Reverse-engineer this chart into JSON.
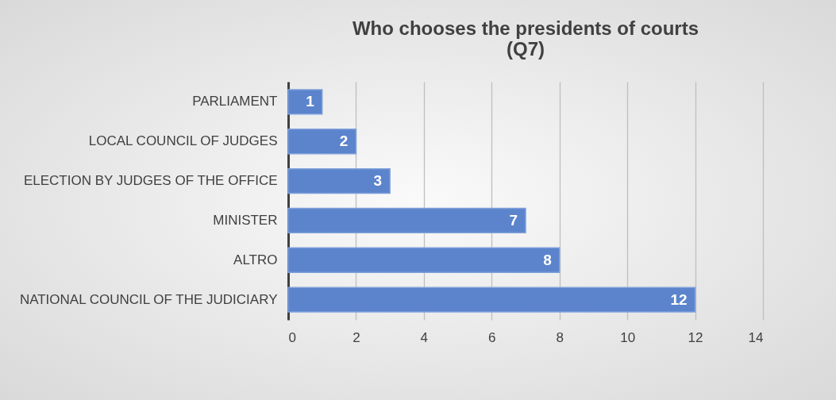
{
  "chart_data": {
    "type": "bar",
    "orientation": "horizontal",
    "title": "Who chooses the presidents of courts\n(Q7)",
    "categories": [
      "PARLIAMENT",
      "LOCAL COUNCIL OF JUDGES",
      "ELECTION BY JUDGES OF THE OFFICE",
      "MINISTER",
      "ALTRO",
      "NATIONAL COUNCIL OF THE JUDICIARY"
    ],
    "values": [
      1,
      2,
      3,
      7,
      8,
      12
    ],
    "color": "#5b84cc",
    "xlim": [
      0,
      14
    ],
    "xticks": [
      0,
      2,
      4,
      6,
      8,
      10,
      12,
      14
    ],
    "grid": "x",
    "data_labels": true
  }
}
